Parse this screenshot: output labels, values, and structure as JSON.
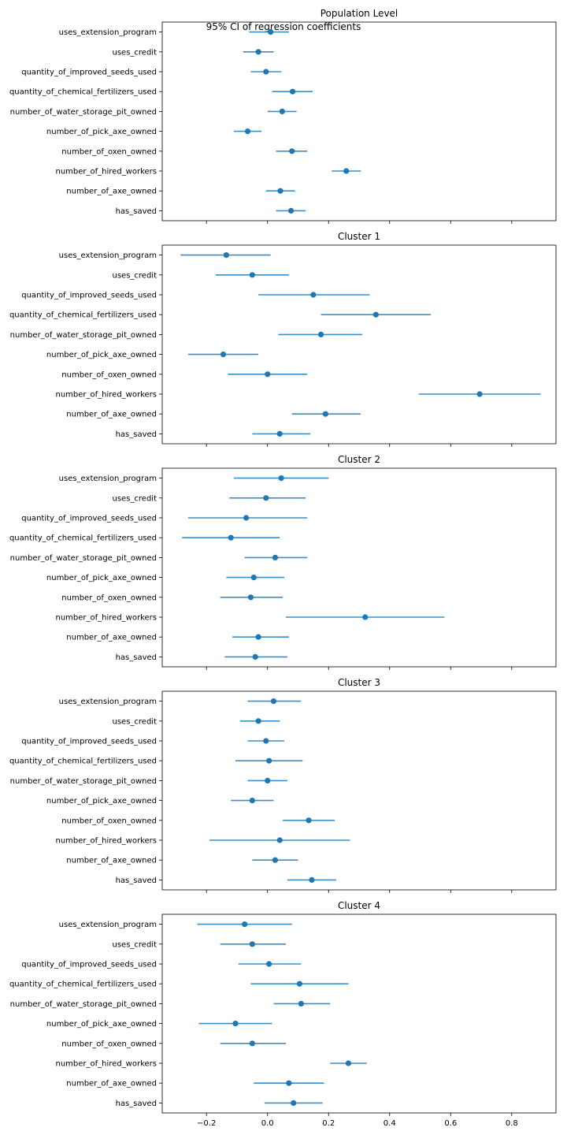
{
  "figure": {
    "suptitle": "95% CI of regression coefficients",
    "marker_color": "#1f77b4",
    "line_color": "#3a8fc7"
  },
  "chart_data": [
    {
      "type": "scatter",
      "title": "Population Level",
      "xlabel": "",
      "ylabel": "",
      "xlim": [
        -0.345,
        0.945
      ],
      "xticks": [
        -0.2,
        0.0,
        0.2,
        0.4,
        0.6,
        0.8
      ],
      "xticklabels_visible": false,
      "grid": false,
      "categories": [
        "uses_extension_program",
        "uses_credit",
        "quantity_of_improved_seeds_used",
        "quantity_of_chemical_fertilizers_used",
        "number_of_water_storage_pit_owned",
        "number_of_pick_axe_owned",
        "number_of_oxen_owned",
        "number_of_hired_workers",
        "number_of_axe_owned",
        "has_saved"
      ],
      "estimate": [
        0.01,
        -0.03,
        -0.005,
        0.082,
        0.048,
        -0.065,
        0.08,
        0.258,
        0.042,
        0.077
      ],
      "ci_low": [
        -0.06,
        -0.08,
        -0.055,
        0.015,
        0.0,
        -0.11,
        0.028,
        0.21,
        -0.005,
        0.028
      ],
      "ci_high": [
        0.07,
        0.02,
        0.045,
        0.148,
        0.095,
        -0.02,
        0.13,
        0.306,
        0.09,
        0.125
      ]
    },
    {
      "type": "scatter",
      "title": "Cluster 1",
      "xlabel": "",
      "ylabel": "",
      "xlim": [
        -0.345,
        0.945
      ],
      "xticks": [
        -0.2,
        0.0,
        0.2,
        0.4,
        0.6,
        0.8
      ],
      "xticklabels_visible": false,
      "grid": false,
      "categories": [
        "uses_extension_program",
        "uses_credit",
        "quantity_of_improved_seeds_used",
        "quantity_of_chemical_fertilizers_used",
        "number_of_water_storage_pit_owned",
        "number_of_pick_axe_owned",
        "number_of_oxen_owned",
        "number_of_hired_workers",
        "number_of_axe_owned",
        "has_saved"
      ],
      "estimate": [
        -0.135,
        -0.05,
        0.15,
        0.355,
        0.175,
        -0.145,
        0.0,
        0.695,
        0.19,
        0.04
      ],
      "ci_low": [
        -0.285,
        -0.17,
        -0.03,
        0.175,
        0.035,
        -0.26,
        -0.13,
        0.495,
        0.08,
        -0.05
      ],
      "ci_high": [
        0.01,
        0.07,
        0.335,
        0.535,
        0.31,
        -0.03,
        0.13,
        0.895,
        0.305,
        0.14
      ]
    },
    {
      "type": "scatter",
      "title": "Cluster 2",
      "xlabel": "",
      "ylabel": "",
      "xlim": [
        -0.345,
        0.945
      ],
      "xticks": [
        -0.2,
        0.0,
        0.2,
        0.4,
        0.6,
        0.8
      ],
      "xticklabels_visible": false,
      "grid": false,
      "categories": [
        "uses_extension_program",
        "uses_credit",
        "quantity_of_improved_seeds_used",
        "quantity_of_chemical_fertilizers_used",
        "number_of_water_storage_pit_owned",
        "number_of_pick_axe_owned",
        "number_of_oxen_owned",
        "number_of_hired_workers",
        "number_of_axe_owned",
        "has_saved"
      ],
      "estimate": [
        0.045,
        -0.005,
        -0.07,
        -0.12,
        0.025,
        -0.045,
        -0.055,
        0.32,
        -0.03,
        -0.04
      ],
      "ci_low": [
        -0.11,
        -0.125,
        -0.26,
        -0.28,
        -0.075,
        -0.135,
        -0.155,
        0.06,
        -0.115,
        -0.14
      ],
      "ci_high": [
        0.2,
        0.125,
        0.13,
        0.04,
        0.13,
        0.055,
        0.05,
        0.58,
        0.07,
        0.065
      ]
    },
    {
      "type": "scatter",
      "title": "Cluster 3",
      "xlabel": "",
      "ylabel": "",
      "xlim": [
        -0.345,
        0.945
      ],
      "xticks": [
        -0.2,
        0.0,
        0.2,
        0.4,
        0.6,
        0.8
      ],
      "xticklabels_visible": false,
      "grid": false,
      "categories": [
        "uses_extension_program",
        "uses_credit",
        "quantity_of_improved_seeds_used",
        "quantity_of_chemical_fertilizers_used",
        "number_of_water_storage_pit_owned",
        "number_of_pick_axe_owned",
        "number_of_oxen_owned",
        "number_of_hired_workers",
        "number_of_axe_owned",
        "has_saved"
      ],
      "estimate": [
        0.02,
        -0.03,
        -0.005,
        0.005,
        0.0,
        -0.05,
        0.135,
        0.04,
        0.025,
        0.145
      ],
      "ci_low": [
        -0.065,
        -0.09,
        -0.065,
        -0.105,
        -0.065,
        -0.12,
        0.05,
        -0.19,
        -0.05,
        0.065
      ],
      "ci_high": [
        0.11,
        0.04,
        0.055,
        0.115,
        0.065,
        0.02,
        0.22,
        0.27,
        0.1,
        0.225
      ]
    },
    {
      "type": "scatter",
      "title": "Cluster 4",
      "xlabel": "",
      "ylabel": "",
      "xlim": [
        -0.345,
        0.945
      ],
      "xticks": [
        -0.2,
        0.0,
        0.2,
        0.4,
        0.6,
        0.8
      ],
      "xticklabels": [
        "−0.2",
        "0.0",
        "0.2",
        "0.4",
        "0.6",
        "0.8"
      ],
      "xticklabels_visible": true,
      "grid": false,
      "categories": [
        "uses_extension_program",
        "uses_credit",
        "quantity_of_improved_seeds_used",
        "quantity_of_chemical_fertilizers_used",
        "number_of_water_storage_pit_owned",
        "number_of_pick_axe_owned",
        "number_of_oxen_owned",
        "number_of_hired_workers",
        "number_of_axe_owned",
        "has_saved"
      ],
      "estimate": [
        -0.075,
        -0.05,
        0.005,
        0.105,
        0.11,
        -0.105,
        -0.05,
        0.265,
        0.07,
        0.085
      ],
      "ci_low": [
        -0.23,
        -0.155,
        -0.095,
        -0.055,
        0.02,
        -0.225,
        -0.155,
        0.205,
        -0.045,
        -0.01
      ],
      "ci_high": [
        0.08,
        0.06,
        0.11,
        0.265,
        0.205,
        0.015,
        0.06,
        0.325,
        0.185,
        0.18
      ]
    }
  ]
}
